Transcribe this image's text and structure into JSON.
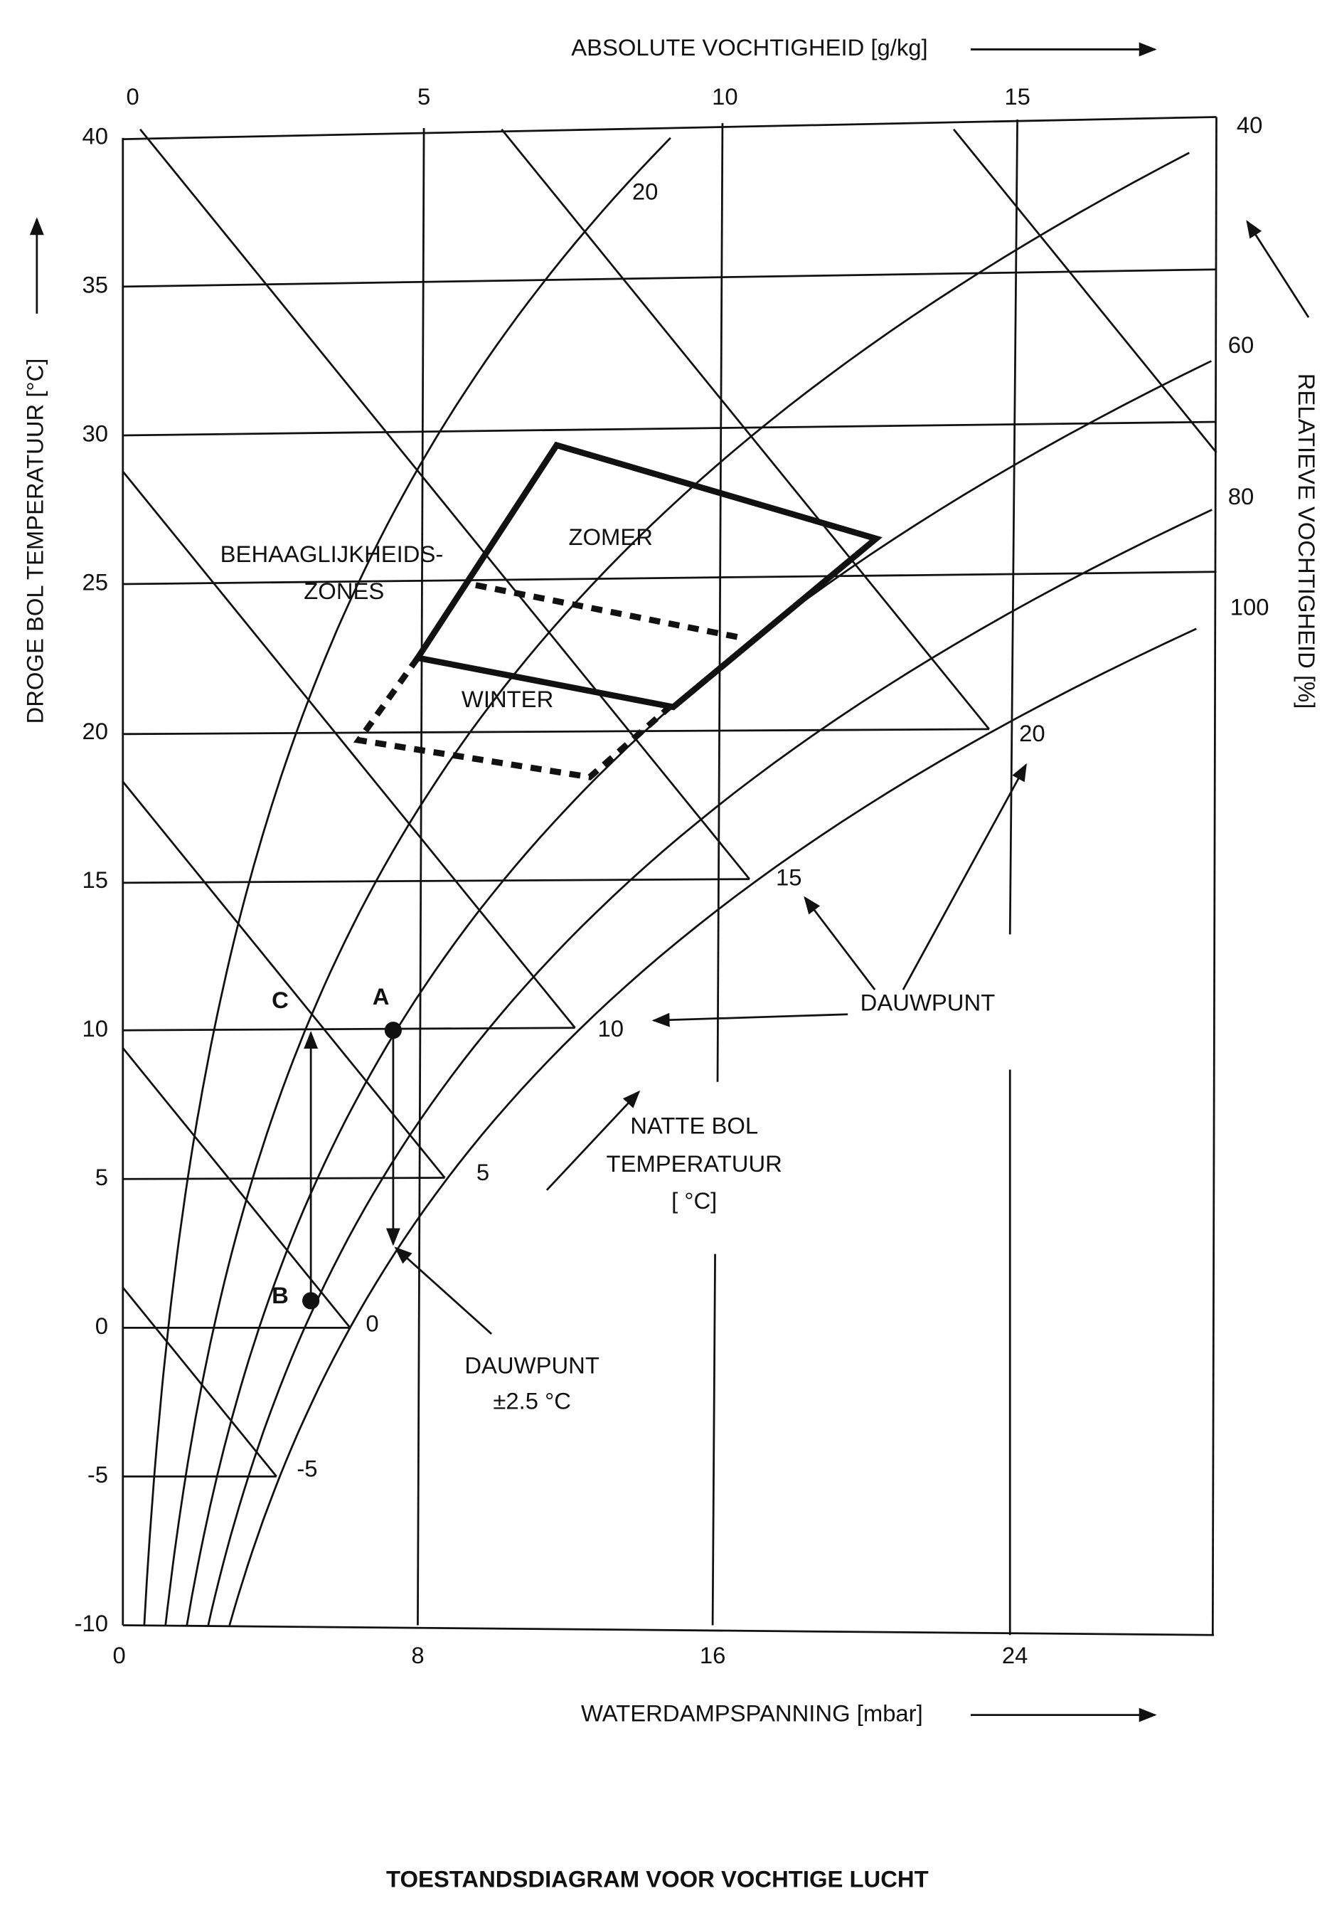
{
  "title": "TOESTANDSDIAGRAM VOOR VOCHTIGE LUCHT",
  "axes": {
    "left": {
      "label": "DROGE BOL TEMPERATUUR [°C]",
      "ticks": [
        "40",
        "35",
        "30",
        "25",
        "20",
        "15",
        "10",
        "5",
        "0",
        "-5",
        "-10"
      ]
    },
    "bottom": {
      "label": "WATERDAMPSPANNING [mbar]",
      "ticks": [
        "0",
        "8",
        "16",
        "24"
      ]
    },
    "top": {
      "label": "ABSOLUTE VOCHTIGHEID [g/kg]",
      "ticks": [
        "0",
        "5",
        "10",
        "15"
      ]
    },
    "right": {
      "label": "RELATIEVE VOCHTIGHEID [%]",
      "ticks": [
        "40",
        "60",
        "80",
        "100"
      ]
    }
  },
  "wet_bulb_labels": [
    "20",
    "20",
    "15",
    "10",
    "5",
    "0",
    "-5"
  ],
  "zones": {
    "title": [
      "BEHAAGLIJKHEIDS-",
      "ZONES"
    ],
    "summer": "ZOMER",
    "winter": "WINTER"
  },
  "points": [
    "A",
    "B",
    "C"
  ],
  "annotations": {
    "dew_point": "DAUWPUNT",
    "wet_bulb": [
      "NATTE BOL",
      "TEMPERATUUR",
      "[ °C]"
    ],
    "dew_point_margin": [
      "DAUWPUNT",
      "±2.5 °C"
    ]
  }
}
